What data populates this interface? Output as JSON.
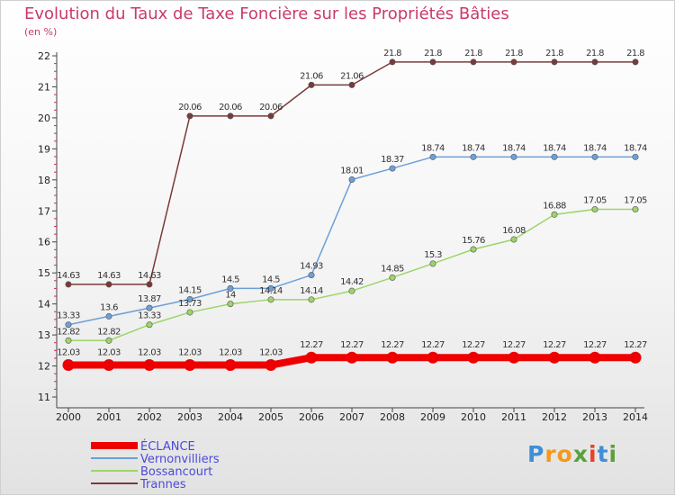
{
  "header": {
    "title": "Evolution du Taux de Taxe Foncière sur les Propriétés Bâties",
    "unit": "(en %)"
  },
  "logo": {
    "letters": [
      "P",
      "r",
      "o",
      "x",
      "i",
      "t",
      "i"
    ],
    "colors": [
      "#3d8fd8",
      "#f39a1e",
      "#f39a1e",
      "#5aa03c",
      "#e8412b",
      "#3d8fd8",
      "#5aa03c"
    ]
  },
  "chart_data": {
    "type": "line",
    "x": [
      2000,
      2001,
      2002,
      2003,
      2004,
      2005,
      2006,
      2007,
      2008,
      2009,
      2010,
      2011,
      2012,
      2013,
      2014
    ],
    "ylim": [
      11,
      22
    ],
    "yticks": [
      11,
      12,
      13,
      14,
      15,
      16,
      17,
      18,
      19,
      20,
      21,
      22
    ],
    "grid": false,
    "legend_position": "bottom-left",
    "series": [
      {
        "name": "ÉCLANCE",
        "color": "#ee0000",
        "labels": [
          "12.03",
          "12.03",
          "12.03",
          "12.03",
          "12.03",
          "12.03",
          "12.27",
          "12.27",
          "12.27",
          "12.27",
          "12.27",
          "12.27",
          "12.27",
          "12.27",
          "12.27"
        ],
        "values": [
          12.03,
          12.03,
          12.03,
          12.03,
          12.03,
          12.03,
          12.27,
          12.27,
          12.27,
          12.27,
          12.27,
          12.27,
          12.27,
          12.27,
          12.27
        ]
      },
      {
        "name": "Vernonvilliers",
        "color": "#6ca0d8",
        "labels": [
          "13.33",
          "13.6",
          "13.87",
          "14.15",
          "14.5",
          "14.5",
          "14.93",
          "18.01",
          "18.37",
          "18.74",
          "18.74",
          "18.74",
          "18.74",
          "18.74",
          "18.74"
        ],
        "values": [
          13.33,
          13.6,
          13.87,
          14.15,
          14.5,
          14.5,
          14.93,
          18.01,
          18.37,
          18.74,
          18.74,
          18.74,
          18.74,
          18.74,
          18.74
        ]
      },
      {
        "name": "Bossancourt",
        "color": "#9ed469",
        "labels": [
          "12.82",
          "12.82",
          "13.33",
          "13.73",
          "14",
          "14.14",
          "14.14",
          "14.42",
          "14.85",
          "15.3",
          "15.76",
          "16.08",
          "16.88",
          "17.05",
          "17.05"
        ],
        "values": [
          12.82,
          12.82,
          13.33,
          13.73,
          14,
          14.14,
          14.14,
          14.42,
          14.85,
          15.3,
          15.76,
          16.08,
          16.88,
          17.05,
          17.05
        ]
      },
      {
        "name": "Trannes",
        "color": "#7a3a3a",
        "labels": [
          "14.63",
          "14.63",
          "14.63",
          "20.06",
          "20.06",
          "20.06",
          "21.06",
          "21.06",
          "21.8",
          "21.8",
          "21.8",
          "21.8",
          "21.8",
          "21.8",
          "21.8"
        ],
        "values": [
          14.63,
          14.63,
          14.63,
          20.06,
          20.06,
          20.06,
          21.06,
          21.06,
          21.8,
          21.8,
          21.8,
          21.8,
          21.8,
          21.8,
          21.8
        ]
      }
    ]
  }
}
